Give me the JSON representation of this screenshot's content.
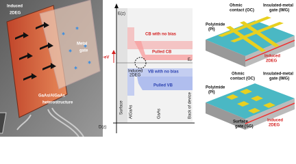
{
  "left": {
    "induced": [
      "Induced",
      "2DEG"
    ],
    "gate": [
      "Metal",
      "gate"
    ],
    "hetero": [
      "GaAs/AlGaAs",
      "heterostructure"
    ]
  },
  "middle": {
    "ez": "E(z)",
    "dz": "D(z)",
    "cb": "CB with no bias",
    "pulled_cb": "Pulled CB",
    "ef": [
      "E",
      "F"
    ],
    "bias": "-eV",
    "induced": [
      "Induced",
      "2DEG"
    ],
    "vb": "VB with no bias",
    "pulled_vb": "Pulled VB",
    "regions": [
      "Surface",
      "AlGaAs",
      "GaAs",
      "Back of device"
    ]
  },
  "right": {
    "top": {
      "oc": [
        "Ohmic",
        "contact (OC)"
      ],
      "img": [
        "Insulated-metal",
        "gate (IMG)"
      ],
      "pi": [
        "Polyimide",
        "(PI)"
      ],
      "induced": [
        "Induced",
        "2DEG"
      ]
    },
    "bottom": {
      "oc": [
        "Ohmic",
        "contact (OC)"
      ],
      "img": [
        "Insulated-metal",
        "gate (IMG)"
      ],
      "pi": [
        "Polyimide",
        "(PI)"
      ],
      "sg": [
        "Surface",
        "gate (SG)"
      ],
      "induced": [
        "Induced",
        "2DEG"
      ]
    }
  }
}
